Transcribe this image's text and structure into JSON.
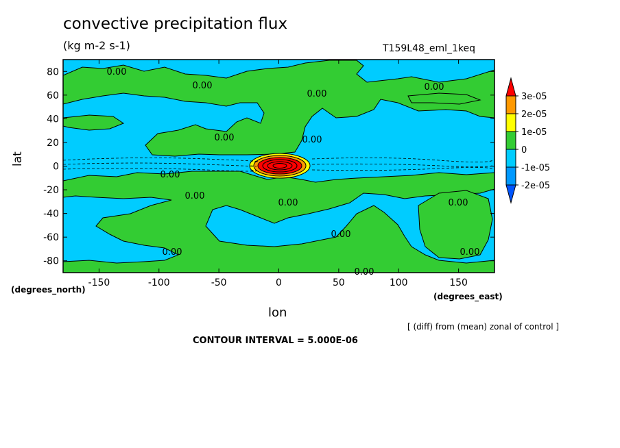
{
  "chart_data": {
    "type": "heatmap",
    "title": "convective precipitation flux",
    "units": "(kg m-2 s-1)",
    "run_label": "T159L48_eml_1keq",
    "xlabel": "lon",
    "ylabel": "lat",
    "x_unit_label": "(degrees_east)",
    "y_unit_label": "(degrees_north)",
    "xlim": [
      -180,
      180
    ],
    "ylim": [
      -90,
      90
    ],
    "x_ticks": [
      -150,
      -100,
      -50,
      0,
      50,
      100,
      150
    ],
    "y_ticks": [
      -80,
      -60,
      -40,
      -20,
      0,
      20,
      40,
      60,
      80
    ],
    "colorbar": {
      "levels": [
        "3e-05",
        "2e-05",
        "1e-05",
        "0",
        "-1e-05",
        "-2e-05"
      ],
      "colors": [
        "#ff0000",
        "#ff9900",
        "#ffff00",
        "#33cc33",
        "#00ccff",
        "#0099ff",
        "#0055ff"
      ]
    },
    "contour_label": "0.00",
    "contour_interval": "CONTOUR INTERVAL = 5.000E-06",
    "note": "[ (diff) from (mean) zonal of control ]",
    "fields": [
      {
        "category": "positive",
        "region": "northern mid-latitudes",
        "lon": [
          -130,
          180
        ],
        "lat": [
          10,
          85
        ]
      },
      {
        "category": "positive",
        "region": "southern mid-latitudes",
        "lon": [
          -180,
          180
        ],
        "lat": [
          -85,
          -10
        ]
      },
      {
        "category": "maximum",
        "region": "equatorial peak",
        "lon": [
          -20,
          25
        ],
        "lat": [
          -8,
          8
        ],
        "peak_level": "3e-05"
      }
    ],
    "colors": {
      "positive": "#33cc33",
      "negative": "#00ccff",
      "peak": "#ff0000",
      "frame": "#000000"
    }
  }
}
